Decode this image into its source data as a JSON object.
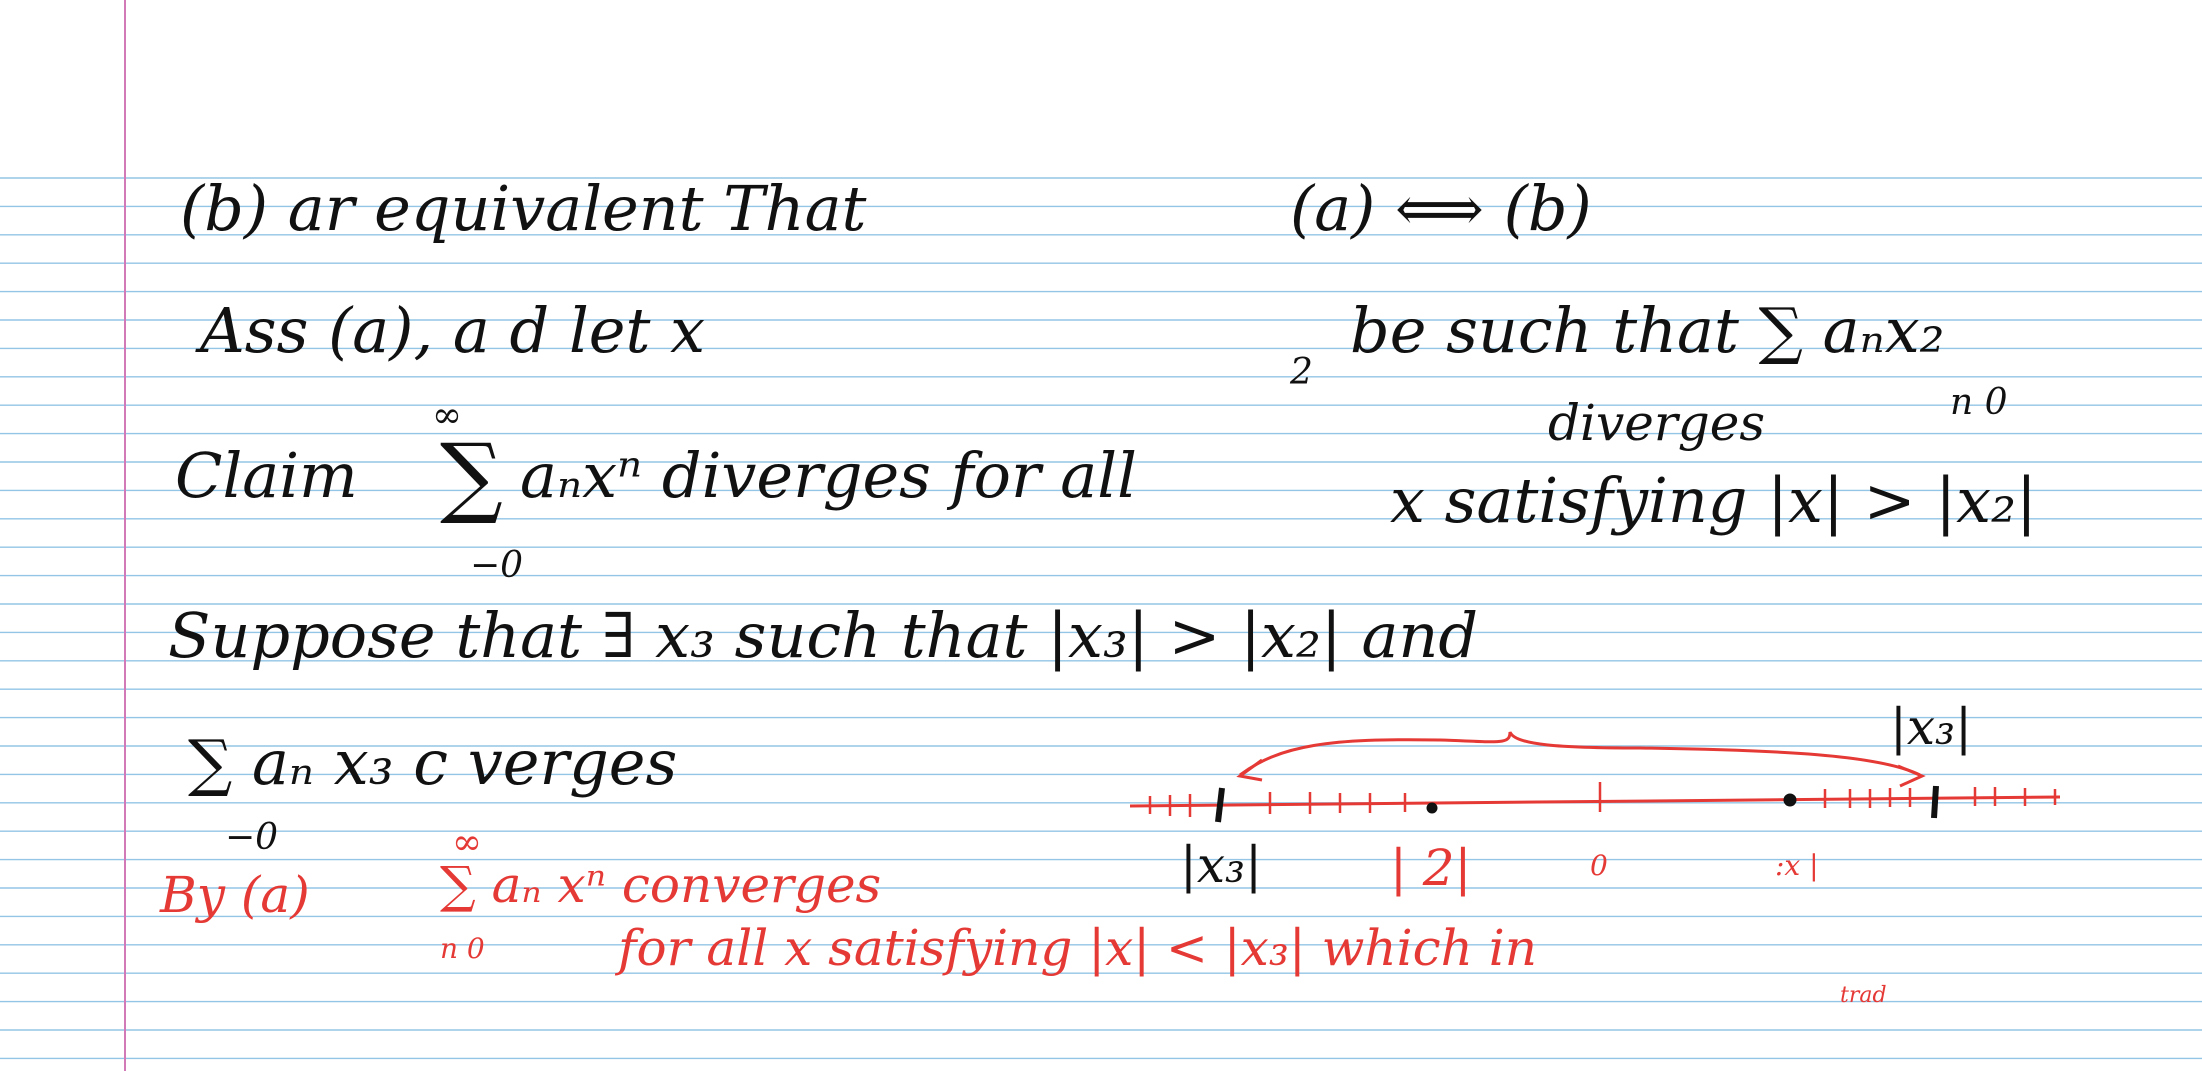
{
  "colors": {
    "paper": "#ffffff",
    "rule_line": "#93c5e6",
    "margin_line": "#d27ab8",
    "ink_black": "#111111",
    "ink_red": "#e53935"
  },
  "notes": {
    "line1": {
      "left": "(b) ar equivalent That",
      "right": "(a) ⟺ (b)"
    },
    "line2": {
      "left": "Ass (a), a d let x",
      "sub_2": "2",
      "right": "be such that ∑ aₙx₂",
      "sum_limits": "n  0"
    },
    "line3": {
      "prefix": "Claim",
      "sum_top": "∞",
      "sum_symbol": "∑",
      "sum_body": "aₙxⁿ diverges for all",
      "sum_bottom": "−0",
      "above": "diverges",
      "right": "x satisfying |x| > |x₂|"
    },
    "line4": {
      "text": "Suppose that ∃ x₃ such that |x₃| > |x₂| and"
    },
    "line5": {
      "sum": "∑ aₙ x₃  c  verges",
      "sum_bottom": "−0",
      "label_right": "|x₃|"
    },
    "number_line": {
      "label_left": "|x₃|",
      "label_mid": "| 2|",
      "label_zero": "0",
      "label_right": ":x |"
    },
    "red_note": {
      "line1_prefix": "By (a)",
      "sum_top": "∞",
      "sum_body": "∑ aₙ xⁿ converges",
      "sum_limits": "n   0",
      "line2": "for all x satisfying |x| < |x₃| which in",
      "below": "trad"
    }
  }
}
